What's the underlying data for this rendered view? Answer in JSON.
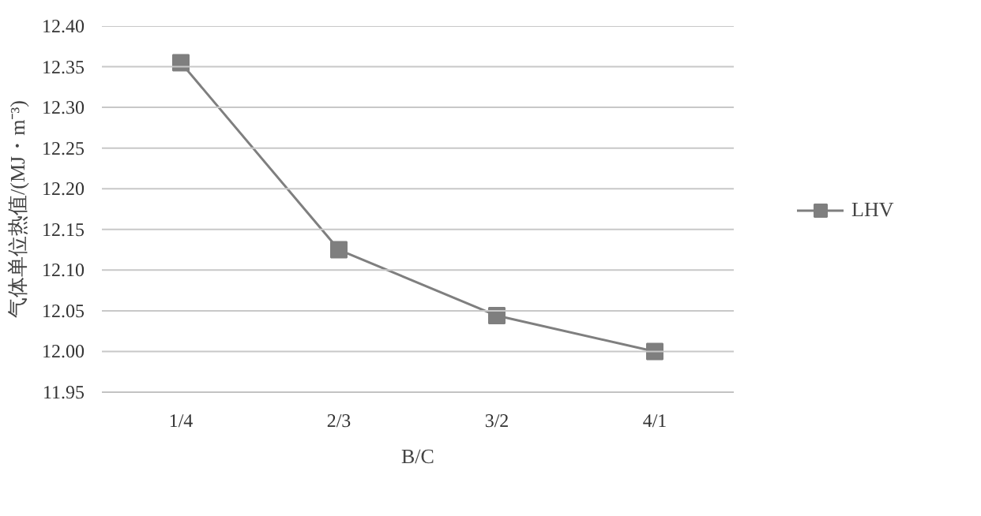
{
  "chart_data": {
    "type": "line",
    "xlabel": "B/C",
    "ylabel": "气体单位热值/(MJ・m⁻³)",
    "categories": [
      "1/4",
      "2/3",
      "3/2",
      "4/1"
    ],
    "series": [
      {
        "name": "LHV",
        "color": "#7f7f7f",
        "values": [
          12.355,
          12.125,
          12.044,
          12.0
        ]
      }
    ],
    "ylim": [
      11.95,
      12.4
    ],
    "yticks": [
      11.95,
      {
        "value": 12,
        "label": "12.00"
      },
      12.05,
      {
        "value": 12.1,
        "label": "12.10"
      },
      12.15,
      {
        "value": 12.2,
        "label": "12.20"
      },
      12.25,
      {
        "value": 12.3,
        "label": "12.30"
      },
      12.35,
      {
        "value": 12.4,
        "label": "12.40"
      }
    ],
    "grid": "y",
    "legend": "right",
    "marker": "square",
    "line_style": "solid"
  }
}
